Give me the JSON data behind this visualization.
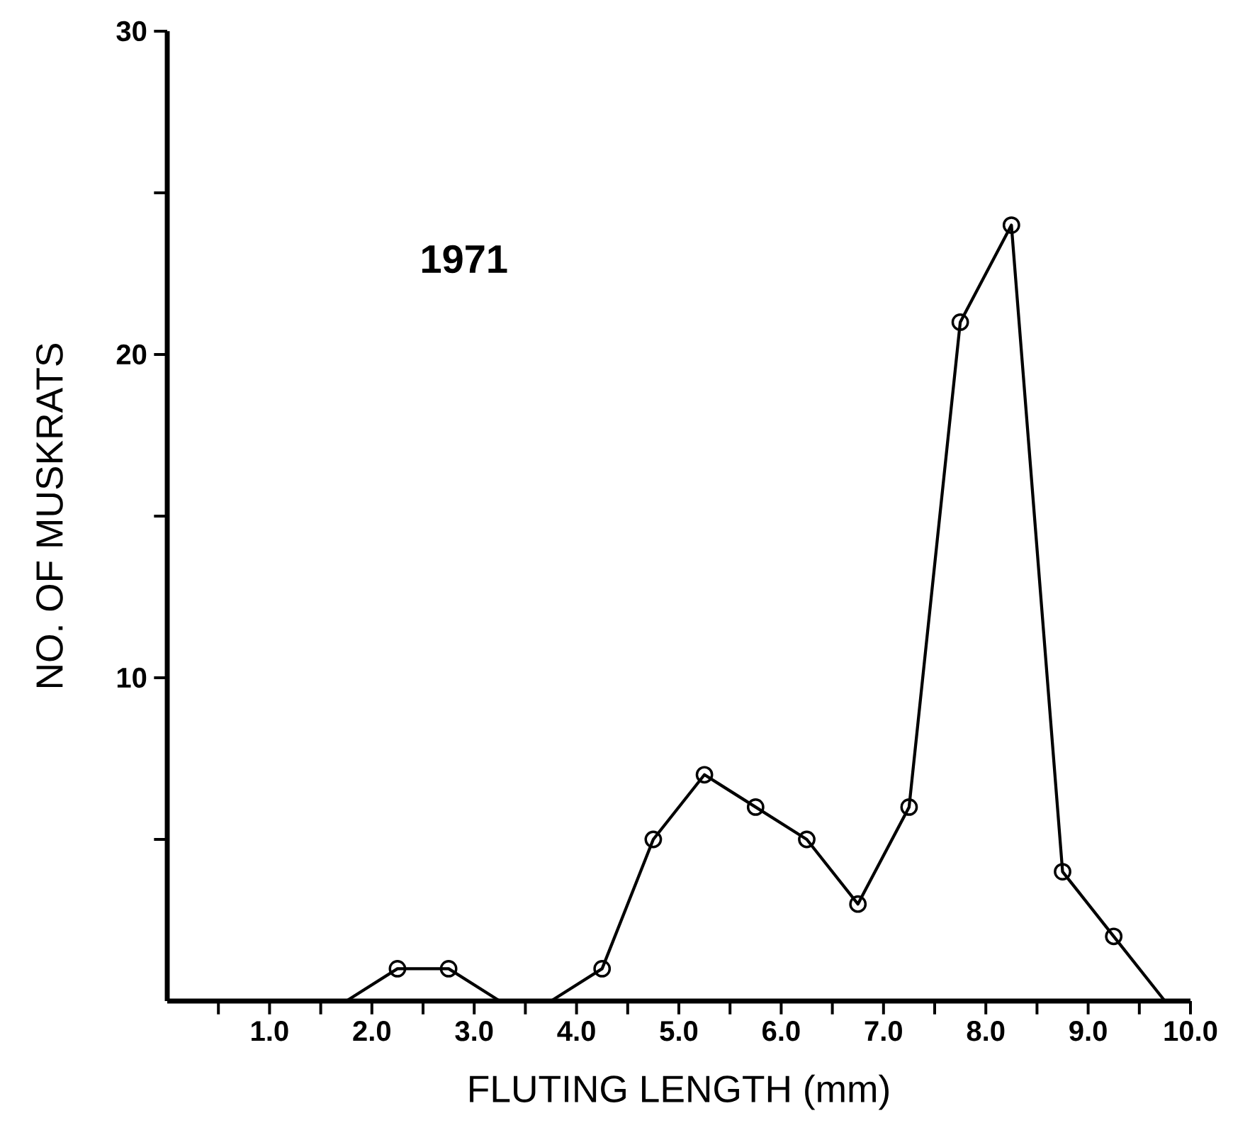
{
  "chart_data": {
    "type": "line",
    "xlabel": "FLUTING LENGTH (mm)",
    "ylabel": "NO. OF MUSKRATS",
    "annotations": [
      "1971"
    ],
    "x": [
      1.75,
      2.25,
      2.75,
      3.25,
      3.75,
      4.25,
      4.75,
      5.25,
      5.75,
      6.25,
      6.75,
      7.25,
      7.75,
      8.25,
      8.75,
      9.25,
      9.75
    ],
    "series": [
      {
        "color": "#000000",
        "values": [
          0,
          1,
          1,
          0,
          0,
          1,
          5,
          7,
          6,
          5,
          3,
          6,
          21,
          24,
          4,
          2,
          0
        ]
      }
    ],
    "xlim": [
      0,
      10
    ],
    "ylim": [
      0,
      30
    ],
    "xticks": [
      {
        "value": 0.5,
        "label": null
      },
      {
        "value": 1,
        "label": "1.0"
      },
      {
        "value": 1.5,
        "label": null
      },
      {
        "value": 2,
        "label": "2.0"
      },
      {
        "value": 2.5,
        "label": null
      },
      {
        "value": 3,
        "label": "3.0"
      },
      {
        "value": 3.5,
        "label": null
      },
      {
        "value": 4,
        "label": "4.0"
      },
      {
        "value": 4.5,
        "label": null
      },
      {
        "value": 5,
        "label": "5.0"
      },
      {
        "value": 5.5,
        "label": null
      },
      {
        "value": 6,
        "label": "6.0"
      },
      {
        "value": 6.5,
        "label": null
      },
      {
        "value": 7,
        "label": "7.0"
      },
      {
        "value": 7.5,
        "label": null
      },
      {
        "value": 8,
        "label": "8.0"
      },
      {
        "value": 8.5,
        "label": null
      },
      {
        "value": 9,
        "label": "9.0"
      },
      {
        "value": 9.5,
        "label": null
      },
      {
        "value": 10,
        "label": "10.0"
      }
    ],
    "yticks": [
      {
        "value": 5,
        "label": null
      },
      10,
      {
        "value": 15,
        "label": null
      },
      20,
      {
        "value": 25,
        "label": null
      },
      30
    ],
    "marker": "circle",
    "line_style": "solid"
  }
}
